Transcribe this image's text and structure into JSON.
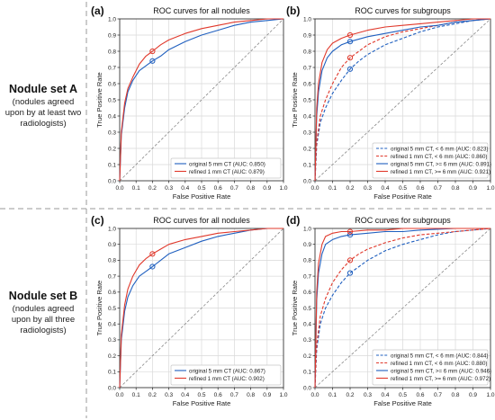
{
  "sets": [
    {
      "name": "Nodule set A",
      "description": "(nodules agreed upon by at least two radiologists)"
    },
    {
      "name": "Nodule set B",
      "description": "(nodules agreed upon by all three radiologists)"
    }
  ],
  "colors": {
    "original": "#1f5fbf",
    "refined": "#e0382b",
    "diagonal": "#888888",
    "grid": "#d9d9d9",
    "separator": "#9a9a9a"
  },
  "chart_data": [
    {
      "type": "line",
      "panel_label": "(a)",
      "title": "ROC curves for all nodules",
      "xlabel": "False Positive Rate",
      "ylabel": "True Positive Rate",
      "xlim": [
        0,
        1
      ],
      "ylim": [
        0,
        1
      ],
      "xticks": [
        "0.0",
        "0.1",
        "0.2",
        "0.3",
        "0.4",
        "0.5",
        "0.6",
        "0.7",
        "0.8",
        "0.9",
        "1.0"
      ],
      "yticks": [
        "0.0",
        "0.1",
        "0.2",
        "0.3",
        "0.4",
        "0.5",
        "0.6",
        "0.7",
        "0.8",
        "0.9",
        "1.0"
      ],
      "grid": true,
      "legend": "bottom-right",
      "series": [
        {
          "name": "original 5 mm CT (AUC: 0.850)",
          "color": "#1f5fbf",
          "dash": false,
          "x": [
            0,
            0.01,
            0.03,
            0.05,
            0.08,
            0.12,
            0.16,
            0.2,
            0.25,
            0.3,
            0.4,
            0.5,
            0.6,
            0.7,
            0.8,
            0.9,
            1
          ],
          "y": [
            0,
            0.28,
            0.45,
            0.55,
            0.62,
            0.68,
            0.71,
            0.74,
            0.77,
            0.81,
            0.86,
            0.9,
            0.93,
            0.96,
            0.98,
            0.99,
            1
          ],
          "marker": [
            0.2,
            0.74
          ]
        },
        {
          "name": "refined 1 mm CT (AUC: 0.879)",
          "color": "#e0382b",
          "dash": false,
          "x": [
            0,
            0.01,
            0.03,
            0.05,
            0.08,
            0.12,
            0.16,
            0.2,
            0.25,
            0.3,
            0.4,
            0.5,
            0.6,
            0.7,
            0.8,
            0.9,
            1
          ],
          "y": [
            0,
            0.3,
            0.48,
            0.57,
            0.64,
            0.72,
            0.77,
            0.8,
            0.84,
            0.87,
            0.91,
            0.94,
            0.96,
            0.98,
            0.99,
            1,
            1
          ],
          "marker": [
            0.2,
            0.8
          ]
        }
      ]
    },
    {
      "type": "line",
      "panel_label": "(b)",
      "title": "ROC curves for subgroups",
      "xlabel": "False Positive Rate",
      "ylabel": "True Positive Rate",
      "xlim": [
        0,
        1
      ],
      "ylim": [
        0,
        1
      ],
      "xticks": [
        "0.0",
        "0.1",
        "0.2",
        "0.3",
        "0.4",
        "0.5",
        "0.6",
        "0.7",
        "0.8",
        "0.9",
        "1.0"
      ],
      "yticks": [
        "0.0",
        "0.1",
        "0.2",
        "0.3",
        "0.4",
        "0.5",
        "0.6",
        "0.7",
        "0.8",
        "0.9",
        "1.0"
      ],
      "grid": true,
      "legend": "bottom-right",
      "series": [
        {
          "name": "original 5 mm CT, < 6 mm (AUC: 0.823)",
          "color": "#1f5fbf",
          "dash": true,
          "x": [
            0,
            0.01,
            0.03,
            0.06,
            0.1,
            0.15,
            0.2,
            0.25,
            0.3,
            0.4,
            0.5,
            0.6,
            0.7,
            0.8,
            0.9,
            1
          ],
          "y": [
            0,
            0.22,
            0.36,
            0.45,
            0.54,
            0.62,
            0.69,
            0.74,
            0.78,
            0.84,
            0.88,
            0.92,
            0.95,
            0.97,
            0.99,
            1
          ],
          "marker": [
            0.2,
            0.69
          ]
        },
        {
          "name": "refined 1 mm CT, < 6 mm (AUC: 0.860)",
          "color": "#e0382b",
          "dash": true,
          "x": [
            0,
            0.01,
            0.03,
            0.06,
            0.1,
            0.15,
            0.2,
            0.25,
            0.3,
            0.4,
            0.5,
            0.6,
            0.7,
            0.8,
            0.9,
            1
          ],
          "y": [
            0,
            0.24,
            0.4,
            0.5,
            0.6,
            0.7,
            0.76,
            0.8,
            0.84,
            0.89,
            0.92,
            0.94,
            0.96,
            0.98,
            0.99,
            1
          ],
          "marker": [
            0.2,
            0.76
          ]
        },
        {
          "name": "original 5 mm CT, >= 6 mm (AUC: 0.891)",
          "color": "#1f5fbf",
          "dash": false,
          "x": [
            0,
            0.01,
            0.02,
            0.04,
            0.07,
            0.1,
            0.15,
            0.2,
            0.3,
            0.4,
            0.5,
            0.6,
            0.7,
            0.8,
            0.9,
            1
          ],
          "y": [
            0,
            0.4,
            0.55,
            0.68,
            0.76,
            0.8,
            0.84,
            0.86,
            0.89,
            0.91,
            0.93,
            0.95,
            0.96,
            0.98,
            0.99,
            1
          ],
          "marker": [
            0.2,
            0.86
          ]
        },
        {
          "name": "refined 1 mm CT, >= 6 mm (AUC: 0.921)",
          "color": "#e0382b",
          "dash": false,
          "x": [
            0,
            0.01,
            0.02,
            0.04,
            0.07,
            0.1,
            0.15,
            0.2,
            0.3,
            0.4,
            0.5,
            0.6,
            0.7,
            0.8,
            0.9,
            1
          ],
          "y": [
            0,
            0.45,
            0.6,
            0.73,
            0.81,
            0.85,
            0.88,
            0.9,
            0.93,
            0.95,
            0.96,
            0.97,
            0.98,
            0.99,
            1,
            1
          ],
          "marker": [
            0.2,
            0.9
          ]
        }
      ]
    },
    {
      "type": "line",
      "panel_label": "(c)",
      "title": "ROC curves for all nodules",
      "xlabel": "False Positive Rate",
      "ylabel": "True Positive Rate",
      "xlim": [
        0,
        1
      ],
      "ylim": [
        0,
        1
      ],
      "xticks": [
        "0.0",
        "0.1",
        "0.2",
        "0.3",
        "0.4",
        "0.5",
        "0.6",
        "0.7",
        "0.8",
        "0.9",
        "1.0"
      ],
      "yticks": [
        "0.0",
        "0.1",
        "0.2",
        "0.3",
        "0.4",
        "0.5",
        "0.6",
        "0.7",
        "0.8",
        "0.9",
        "1.0"
      ],
      "grid": true,
      "legend": "bottom-right",
      "series": [
        {
          "name": "original 5 mm CT (AUC: 0.867)",
          "color": "#1f5fbf",
          "dash": false,
          "x": [
            0,
            0.01,
            0.03,
            0.05,
            0.08,
            0.12,
            0.16,
            0.2,
            0.25,
            0.3,
            0.4,
            0.5,
            0.6,
            0.7,
            0.8,
            0.9,
            1
          ],
          "y": [
            0,
            0.3,
            0.48,
            0.57,
            0.64,
            0.7,
            0.73,
            0.76,
            0.8,
            0.84,
            0.88,
            0.92,
            0.95,
            0.97,
            0.99,
            1,
            1
          ],
          "marker": [
            0.2,
            0.76
          ]
        },
        {
          "name": "refined 1 mm CT (AUC: 0.902)",
          "color": "#e0382b",
          "dash": false,
          "x": [
            0,
            0.01,
            0.03,
            0.05,
            0.08,
            0.12,
            0.16,
            0.2,
            0.25,
            0.3,
            0.4,
            0.5,
            0.6,
            0.7,
            0.8,
            0.9,
            1
          ],
          "y": [
            0,
            0.33,
            0.52,
            0.62,
            0.7,
            0.77,
            0.81,
            0.84,
            0.87,
            0.9,
            0.93,
            0.95,
            0.97,
            0.98,
            0.99,
            1,
            1
          ],
          "marker": [
            0.2,
            0.84
          ]
        }
      ]
    },
    {
      "type": "line",
      "panel_label": "(d)",
      "title": "ROC curves for subgroups",
      "xlabel": "False Positive Rate",
      "ylabel": "True Positive Rate",
      "xlim": [
        0,
        1
      ],
      "ylim": [
        0,
        1
      ],
      "xticks": [
        "0.0",
        "0.1",
        "0.2",
        "0.3",
        "0.4",
        "0.5",
        "0.6",
        "0.7",
        "0.8",
        "0.9",
        "1.0"
      ],
      "yticks": [
        "0.0",
        "0.1",
        "0.2",
        "0.3",
        "0.4",
        "0.5",
        "0.6",
        "0.7",
        "0.8",
        "0.9",
        "1.0"
      ],
      "grid": true,
      "legend": "bottom-right",
      "series": [
        {
          "name": "original 5 mm CT, < 6 mm (AUC: 0.844)",
          "color": "#1f5fbf",
          "dash": true,
          "x": [
            0,
            0.01,
            0.03,
            0.06,
            0.1,
            0.15,
            0.2,
            0.25,
            0.3,
            0.4,
            0.5,
            0.6,
            0.7,
            0.8,
            0.9,
            1
          ],
          "y": [
            0,
            0.24,
            0.4,
            0.5,
            0.58,
            0.66,
            0.72,
            0.76,
            0.8,
            0.86,
            0.9,
            0.93,
            0.96,
            0.98,
            0.99,
            1
          ],
          "marker": [
            0.2,
            0.72
          ]
        },
        {
          "name": "refined 1 mm CT, < 6 mm (AUC: 0.880)",
          "color": "#e0382b",
          "dash": true,
          "x": [
            0,
            0.01,
            0.03,
            0.06,
            0.1,
            0.15,
            0.2,
            0.25,
            0.3,
            0.4,
            0.5,
            0.6,
            0.7,
            0.8,
            0.9,
            1
          ],
          "y": [
            0,
            0.27,
            0.45,
            0.56,
            0.66,
            0.74,
            0.8,
            0.84,
            0.87,
            0.91,
            0.94,
            0.96,
            0.97,
            0.98,
            0.99,
            1
          ],
          "marker": [
            0.2,
            0.8
          ]
        },
        {
          "name": "original 5 mm CT, >= 6 mm (AUC: 0.946)",
          "color": "#1f5fbf",
          "dash": false,
          "x": [
            0,
            0.01,
            0.02,
            0.04,
            0.06,
            0.1,
            0.15,
            0.2,
            0.3,
            0.4,
            0.5,
            0.6,
            0.8,
            1
          ],
          "y": [
            0,
            0.55,
            0.72,
            0.84,
            0.9,
            0.93,
            0.95,
            0.96,
            0.97,
            0.98,
            0.98,
            0.99,
            1,
            1
          ],
          "marker": [
            0.2,
            0.96
          ]
        },
        {
          "name": "refined 1 mm CT, >= 6 mm (AUC: 0.972)",
          "color": "#e0382b",
          "dash": false,
          "x": [
            0,
            0.01,
            0.02,
            0.04,
            0.06,
            0.1,
            0.15,
            0.2,
            0.3,
            0.4,
            0.5,
            0.6,
            0.8,
            1
          ],
          "y": [
            0,
            0.6,
            0.78,
            0.9,
            0.95,
            0.97,
            0.98,
            0.98,
            0.99,
            0.99,
            1,
            1,
            1,
            1
          ],
          "marker": [
            0.2,
            0.98
          ]
        }
      ]
    }
  ]
}
